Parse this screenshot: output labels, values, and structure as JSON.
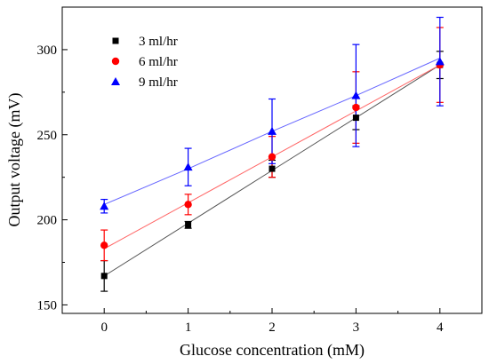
{
  "chart_data": {
    "type": "scatter",
    "title": "",
    "xlabel": "Glucose concentration (mM)",
    "ylabel": "Output voltage (mV)",
    "xlim": [
      -0.5,
      4.5
    ],
    "ylim": [
      145,
      325
    ],
    "x_ticks": [
      0,
      1,
      2,
      3,
      4
    ],
    "y_ticks": [
      150,
      200,
      250,
      300
    ],
    "grid": false,
    "legend_position": "top-left",
    "fit_lines": true,
    "series": [
      {
        "name": "3 ml/hr",
        "marker": "square",
        "color": "#000000",
        "line_color": "#555555",
        "x": [
          0,
          1,
          2,
          3,
          4
        ],
        "y": [
          167,
          197,
          230,
          260,
          291
        ],
        "yerr": [
          9,
          2,
          5,
          7,
          8
        ],
        "fit": [
          167,
          198,
          229,
          260,
          291
        ]
      },
      {
        "name": "6 ml/hr",
        "marker": "circle",
        "color": "#ff0000",
        "line_color": "#ff6666",
        "x": [
          0,
          1,
          2,
          3,
          4
        ],
        "y": [
          185,
          209,
          237,
          266,
          291
        ],
        "yerr": [
          9,
          6,
          12,
          21,
          22
        ],
        "fit": [
          183,
          210,
          237,
          264,
          291
        ]
      },
      {
        "name": "9 ml/hr",
        "marker": "triangle",
        "color": "#0000ff",
        "line_color": "#6666ff",
        "x": [
          0,
          1,
          2,
          3,
          4
        ],
        "y": [
          208,
          231,
          252,
          273,
          293
        ],
        "yerr": [
          4,
          11,
          19,
          30,
          26
        ],
        "fit": [
          209,
          230,
          252,
          273,
          295
        ]
      }
    ]
  }
}
